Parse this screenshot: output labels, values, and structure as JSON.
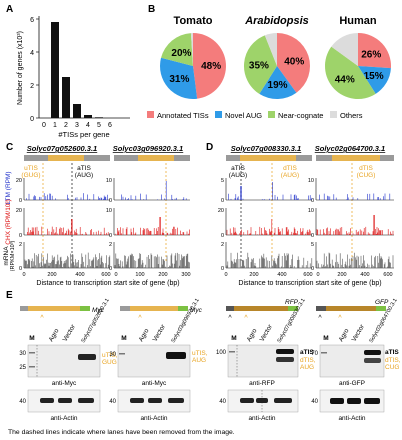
{
  "panel_labels": {
    "a": "A",
    "b": "B",
    "c": "C",
    "d": "D",
    "e": "E"
  },
  "panel_a": {
    "ylabel": "Number of genes (x10³)",
    "xlabel": "#TISs per gene",
    "y_ticks": [
      "0",
      "2",
      "4",
      "6"
    ],
    "x_ticks": [
      "0",
      "1",
      "2",
      "3",
      "4",
      "5",
      "6"
    ],
    "colors": {
      "bars": "#111111"
    }
  },
  "panel_b": {
    "titles": [
      "Tomato",
      "Arabidopsis",
      "Human"
    ],
    "legend": [
      "Annotated TISs",
      "Novel AUG",
      "Near-cognate",
      "Others"
    ],
    "colors": [
      "#f47c7c",
      "#2f9be8",
      "#9ed36a",
      "#dcdcdc"
    ]
  },
  "panel_c": {
    "genes": [
      "Solyc07g052600.3.1",
      "Solyc03g096920.3.1"
    ],
    "uTIS_label": [
      "uTIS",
      "(GUG)"
    ],
    "aTIS_label": [
      "aTIS",
      "(AUG)"
    ],
    "ltm_label": "LTM (RPM)",
    "chx_label": "CHX (RPM/10³)",
    "mrna_label": [
      "mRNA",
      "(RPKM×10³)"
    ],
    "xlabel": "Distance to transcription start site of gene (bp)",
    "ltm_ticks": [
      "20",
      "0",
      "10",
      "0"
    ],
    "chx_ticks": [
      "20",
      "0",
      "10",
      "0"
    ],
    "mrna_ticks": [
      "2",
      "0",
      "2",
      "0"
    ],
    "x_ticks_1": [
      "0",
      "200",
      "400",
      "600"
    ],
    "x_ticks_2": [
      "0",
      "100",
      "200",
      "300"
    ]
  },
  "panel_d": {
    "genes": [
      "Solyc07g008330.3.1",
      "Solyc02g064700.3.1"
    ],
    "aTIS_label": [
      "aTIS",
      "(AUG)"
    ],
    "dTIS1_label": [
      "dTIS",
      "(AUG)"
    ],
    "dTIS2_label": [
      "dTIS",
      "(CUG)"
    ],
    "ltm_ticks": [
      "5",
      "0",
      "10",
      "0"
    ],
    "chx_ticks": [
      "20",
      "0",
      "10",
      "0"
    ],
    "mrna_ticks": [
      "2",
      "0",
      "5",
      "0"
    ],
    "x_ticks_1": [
      "0",
      "200",
      "400",
      "600"
    ],
    "x_ticks_2": [
      "0",
      "200",
      "400",
      "600"
    ]
  },
  "panel_e": {
    "tags": [
      "Myc",
      "Myc",
      "RFP",
      "GFP"
    ],
    "lanes_common": [
      "M",
      "Agro",
      "Vector"
    ],
    "gene_lanes": [
      "Solyc07g052600.3.1",
      "Solyc03g096920.3.1",
      "Solyc07g008330.3.1",
      "Solyc02g064700.3.1"
    ],
    "band_labels": [
      [
        "uTIS,",
        "GUG"
      ],
      [
        "uTIS,",
        "AUG"
      ],
      [
        "aTIS",
        "dTIS,",
        "AUG"
      ],
      [
        "aTIS",
        "dTIS,",
        "CUG"
      ]
    ],
    "antibodies": [
      "anti-Myc",
      "anti-Myc",
      "anti-RFP",
      "anti-GFP"
    ],
    "actin": "anti-Actin",
    "mw_1": [
      "30",
      "25"
    ],
    "mw_2": [
      "30"
    ],
    "mw_3": [
      "100"
    ],
    "mw_4": [
      "70"
    ],
    "mw_actin": "40",
    "footnote": "The dashed lines indicate where lanes have been removed from the image."
  },
  "colors": {
    "ltm": "#2233cc",
    "chx": "#dd1111",
    "mrna": "#555555",
    "accent": "#e8a320",
    "cds": "#e6b450",
    "utr": "#9a9a9a",
    "green": "#7cc142"
  }
}
